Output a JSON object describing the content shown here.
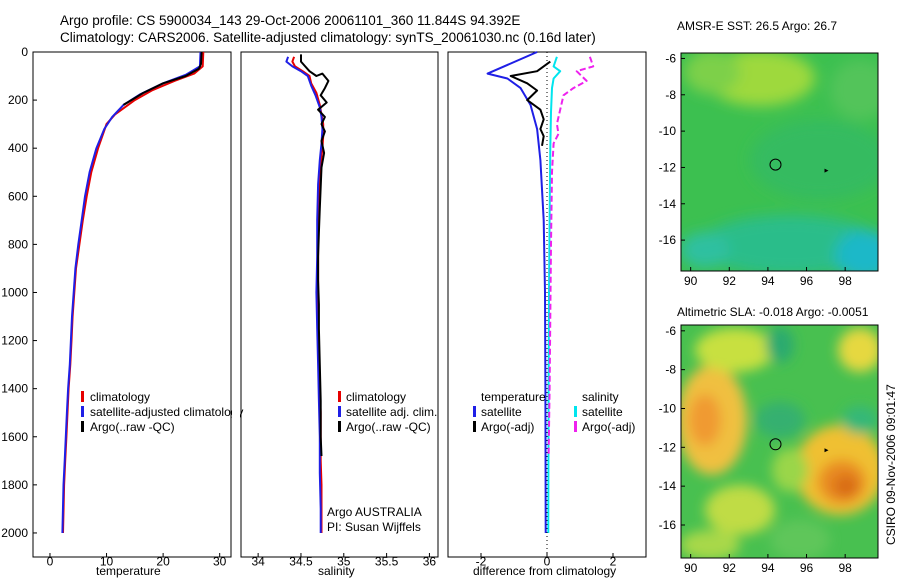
{
  "header": {
    "line1": "Argo profile: CS 5900034_143 29-Oct-2006 20061101_360 11.844S 94.392E",
    "line2": "Climatology: CARS2006. Satellite-adjusted climatology: synTS_20061030.nc (0.16d later)"
  },
  "colors": {
    "red": "#e60000",
    "blue": "#1f1fe6",
    "black": "#000000",
    "cyan": "#00e5ee",
    "magenta": "#ee22ee"
  },
  "chart_data": [
    {
      "type": "line",
      "name": "temperature",
      "xlabel": "temperature",
      "xlim": [
        -3,
        32
      ],
      "ylim": [
        0,
        2100
      ],
      "xticks": [
        "0",
        "10",
        "20",
        "30"
      ],
      "yticks": [
        "0",
        "200",
        "400",
        "600",
        "800",
        "1000",
        "1200",
        "1400",
        "1600",
        "1800",
        "2000"
      ],
      "legend": [
        "climatology",
        "satellite-adjusted climatology",
        "Argo(..raw -QC)"
      ],
      "series": [
        {
          "name": "climatology",
          "color": "red",
          "points": [
            [
              27.1,
              0
            ],
            [
              27.0,
              60
            ],
            [
              25.5,
              90
            ],
            [
              22,
              120
            ],
            [
              18,
              160
            ],
            [
              15,
              200
            ],
            [
              11.5,
              260
            ],
            [
              10,
              300
            ],
            [
              8.5,
              400
            ],
            [
              7.3,
              500
            ],
            [
              6.5,
              600
            ],
            [
              5.8,
              700
            ],
            [
              5.2,
              800
            ],
            [
              4.6,
              900
            ],
            [
              4.3,
              1000
            ],
            [
              4,
              1100
            ],
            [
              3.8,
              1200
            ],
            [
              3.6,
              1300
            ],
            [
              3.3,
              1400
            ],
            [
              3.1,
              1500
            ],
            [
              2.9,
              1600
            ],
            [
              2.7,
              1700
            ],
            [
              2.5,
              1800
            ],
            [
              2.3,
              2000
            ]
          ]
        },
        {
          "name": "satellite",
          "color": "blue",
          "points": [
            [
              26.6,
              0
            ],
            [
              26.5,
              60
            ],
            [
              24,
              95
            ],
            [
              20,
              130
            ],
            [
              16,
              175
            ],
            [
              13,
              220
            ],
            [
              11,
              270
            ],
            [
              9.6,
              320
            ],
            [
              8.2,
              400
            ],
            [
              7,
              500
            ],
            [
              6.2,
              600
            ],
            [
              5.6,
              700
            ],
            [
              5,
              800
            ],
            [
              4.5,
              900
            ],
            [
              4.2,
              1000
            ],
            [
              3.9,
              1100
            ],
            [
              3.7,
              1200
            ],
            [
              3.5,
              1300
            ],
            [
              3.2,
              1400
            ],
            [
              3,
              1500
            ],
            [
              2.8,
              1600
            ],
            [
              2.6,
              1700
            ],
            [
              2.4,
              1800
            ],
            [
              2.2,
              2000
            ]
          ]
        },
        {
          "name": "argo",
          "color": "black",
          "points": [
            [
              26.8,
              0
            ],
            [
              26.7,
              50
            ],
            [
              26.3,
              70
            ],
            [
              24,
              100
            ],
            [
              20,
              130
            ],
            [
              16.5,
              170
            ],
            [
              13,
              220
            ]
          ]
        }
      ]
    },
    {
      "type": "line",
      "name": "salinity",
      "xlabel": "salinity",
      "xlim": [
        33.8,
        36.1
      ],
      "ylim": [
        0,
        2100
      ],
      "xticks": [
        "34",
        "34.5",
        "35",
        "35.5",
        "36"
      ],
      "legend": [
        "climatology",
        "satellite adj. clim.",
        "Argo(..raw -QC)"
      ],
      "annotation": [
        "Argo AUSTRALIA",
        "PI: Susan Wijffels"
      ],
      "series": [
        {
          "name": "climatology",
          "color": "red",
          "points": [
            [
              34.42,
              20
            ],
            [
              34.4,
              40
            ],
            [
              34.43,
              60
            ],
            [
              34.52,
              80
            ],
            [
              34.6,
              100
            ],
            [
              34.62,
              130
            ],
            [
              34.68,
              170
            ],
            [
              34.72,
              220
            ],
            [
              34.74,
              260
            ],
            [
              34.76,
              300
            ],
            [
              34.76,
              350
            ],
            [
              34.75,
              400
            ],
            [
              34.72,
              500
            ],
            [
              34.71,
              600
            ],
            [
              34.7,
              700
            ],
            [
              34.7,
              800
            ],
            [
              34.7,
              900
            ],
            [
              34.7,
              1000
            ],
            [
              34.7,
              1100
            ],
            [
              34.7,
              1200
            ],
            [
              34.71,
              1300
            ],
            [
              34.72,
              1400
            ],
            [
              34.73,
              1500
            ],
            [
              34.73,
              1600
            ],
            [
              34.73,
              1700
            ],
            [
              34.74,
              1800
            ],
            [
              34.74,
              2000
            ]
          ]
        },
        {
          "name": "satellite",
          "color": "blue",
          "points": [
            [
              34.35,
              20
            ],
            [
              34.33,
              40
            ],
            [
              34.4,
              60
            ],
            [
              34.5,
              80
            ],
            [
              34.58,
              100
            ],
            [
              34.62,
              140
            ],
            [
              34.67,
              180
            ],
            [
              34.72,
              230
            ],
            [
              34.74,
              270
            ],
            [
              34.75,
              320
            ],
            [
              34.74,
              380
            ],
            [
              34.72,
              450
            ],
            [
              34.7,
              550
            ],
            [
              34.69,
              700
            ],
            [
              34.69,
              850
            ],
            [
              34.68,
              1000
            ],
            [
              34.69,
              1150
            ],
            [
              34.7,
              1300
            ],
            [
              34.71,
              1450
            ],
            [
              34.72,
              1600
            ],
            [
              34.72,
              1750
            ],
            [
              34.73,
              1900
            ],
            [
              34.73,
              2000
            ]
          ]
        },
        {
          "name": "argo",
          "color": "black",
          "points": [
            [
              34.5,
              10
            ],
            [
              34.5,
              40
            ],
            [
              34.55,
              60
            ],
            [
              34.6,
              80
            ],
            [
              34.68,
              100
            ],
            [
              34.75,
              90
            ],
            [
              34.82,
              120
            ],
            [
              34.78,
              150
            ],
            [
              34.73,
              180
            ],
            [
              34.8,
              210
            ],
            [
              34.7,
              240
            ],
            [
              34.78,
              270
            ],
            [
              34.74,
              300
            ],
            [
              34.78,
              330
            ],
            [
              34.74,
              370
            ],
            [
              34.77,
              420
            ],
            [
              34.74,
              480
            ],
            [
              34.73,
              560
            ],
            [
              34.72,
              650
            ],
            [
              34.71,
              750
            ],
            [
              34.7,
              850
            ],
            [
              34.7,
              950
            ],
            [
              34.71,
              1050
            ],
            [
              34.71,
              1150
            ],
            [
              34.72,
              1300
            ],
            [
              34.73,
              1450
            ],
            [
              34.73,
              1600
            ],
            [
              34.74,
              1680
            ]
          ]
        }
      ]
    },
    {
      "type": "line",
      "name": "difference",
      "xlabel": "difference from climatology",
      "xlim": [
        -3,
        3
      ],
      "ylim": [
        0,
        2100
      ],
      "xticks": [
        "-2",
        "0",
        "2"
      ],
      "legend_left": [
        "temperature",
        "satellite",
        "Argo(-adj)"
      ],
      "legend_right": [
        "salinity",
        "satellite",
        "Argo(-adj)"
      ],
      "series": [
        {
          "name": "temp-satellite",
          "color": "blue",
          "points": [
            [
              -0.3,
              0
            ],
            [
              -1.8,
              90
            ],
            [
              -1.2,
              110
            ],
            [
              -0.8,
              150
            ],
            [
              -0.5,
              220
            ],
            [
              -0.3,
              320
            ],
            [
              -0.2,
              450
            ],
            [
              -0.1,
              700
            ],
            [
              -0.06,
              1000
            ],
            [
              -0.05,
              1400
            ],
            [
              -0.04,
              2000
            ]
          ]
        },
        {
          "name": "temp-argo",
          "color": "black",
          "points": [
            [
              0.1,
              40
            ],
            [
              -0.3,
              80
            ],
            [
              -1.1,
              100
            ],
            [
              -0.6,
              130
            ],
            [
              -0.3,
              160
            ],
            [
              -0.6,
              200
            ],
            [
              -0.2,
              240
            ],
            [
              -0.1,
              280
            ],
            [
              -0.2,
              320
            ],
            [
              -0.1,
              350
            ],
            [
              -0.15,
              390
            ]
          ]
        },
        {
          "name": "sal-satellite",
          "color": "cyan",
          "points": [
            [
              0.3,
              20
            ],
            [
              0.2,
              60
            ],
            [
              0.4,
              80
            ],
            [
              0.2,
              110
            ],
            [
              0.15,
              150
            ],
            [
              0.12,
              250
            ],
            [
              0.1,
              400
            ],
            [
              0.08,
              700
            ],
            [
              0.06,
              1000
            ],
            [
              0.05,
              1400
            ],
            [
              0.04,
              2000
            ]
          ]
        },
        {
          "name": "sal-argo",
          "color": "magenta",
          "points": [
            [
              1.3,
              20
            ],
            [
              1.4,
              60
            ],
            [
              0.9,
              80
            ],
            [
              1.2,
              120
            ],
            [
              0.8,
              150
            ],
            [
              0.5,
              180
            ],
            [
              0.4,
              240
            ],
            [
              0.3,
              300
            ],
            [
              0.35,
              340
            ],
            [
              0.2,
              380
            ],
            [
              0.15,
              500
            ],
            [
              0.12,
              800
            ],
            [
              0.1,
              1100
            ],
            [
              0.08,
              1400
            ],
            [
              0.05,
              1680
            ]
          ]
        }
      ]
    },
    {
      "type": "heatmap",
      "name": "sst-map",
      "title": "AMSR-E SST: 26.5 Argo: 26.7",
      "xlim": [
        89.5,
        99.7
      ],
      "ylim": [
        -17.7,
        -5.7
      ],
      "xticks": [
        "90",
        "92",
        "94",
        "96",
        "98"
      ],
      "yticks": [
        "-6",
        "-8",
        "-10",
        "-12",
        "-14",
        "-16"
      ],
      "argo_position": [
        94.392,
        -11.844
      ]
    },
    {
      "type": "heatmap",
      "name": "sla-map",
      "title": "Altimetric SLA: -0.018 Argo: -0.0051",
      "xlim": [
        89.5,
        99.7
      ],
      "ylim": [
        -17.7,
        -5.7
      ],
      "xticks": [
        "90",
        "92",
        "94",
        "96",
        "98"
      ],
      "yticks": [
        "-6",
        "-8",
        "-10",
        "-12",
        "-14",
        "-16"
      ],
      "argo_position": [
        94.392,
        -11.844
      ]
    }
  ],
  "footer": {
    "stamp": "CSIRO 09-Nov-2006 09:01:47"
  }
}
